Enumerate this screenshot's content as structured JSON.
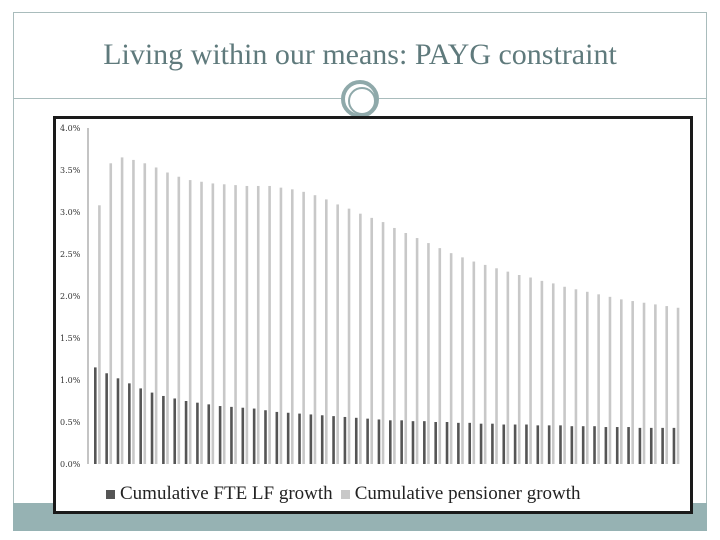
{
  "slide": {
    "title": "Living within our means: PAYG constraint"
  },
  "colors": {
    "frame": "#a9bcbc",
    "band": "#96b2b3",
    "title": "#5f7a7c",
    "series_fte": "#555555",
    "series_pensioner": "#c8c8c8"
  },
  "chart_data": {
    "type": "bar",
    "title": "",
    "xlabel": "",
    "ylabel": "",
    "ylim": [
      0,
      4.0
    ],
    "y_ticks": [
      "0.0%",
      "0.5%",
      "1.0%",
      "1.5%",
      "2.0%",
      "2.5%",
      "3.0%",
      "3.5%",
      "4.0%"
    ],
    "y_tick_values": [
      0,
      0.5,
      1.0,
      1.5,
      2.0,
      2.5,
      3.0,
      3.5,
      4.0
    ],
    "grid": false,
    "legend": "bottom",
    "series": [
      {
        "name": "Cumulative FTE LF growth",
        "values": [
          1.15,
          1.08,
          1.02,
          0.96,
          0.9,
          0.85,
          0.81,
          0.78,
          0.75,
          0.73,
          0.71,
          0.69,
          0.68,
          0.67,
          0.66,
          0.64,
          0.62,
          0.61,
          0.6,
          0.59,
          0.58,
          0.57,
          0.56,
          0.55,
          0.54,
          0.53,
          0.52,
          0.52,
          0.51,
          0.51,
          0.5,
          0.5,
          0.49,
          0.49,
          0.48,
          0.48,
          0.47,
          0.47,
          0.47,
          0.46,
          0.46,
          0.46,
          0.45,
          0.45,
          0.45,
          0.44,
          0.44,
          0.44,
          0.43,
          0.43,
          0.43,
          0.43
        ]
      },
      {
        "name": "Cumulative pensioner growth",
        "values": [
          3.08,
          3.58,
          3.65,
          3.62,
          3.58,
          3.53,
          3.47,
          3.42,
          3.38,
          3.36,
          3.34,
          3.33,
          3.32,
          3.31,
          3.31,
          3.31,
          3.29,
          3.27,
          3.24,
          3.2,
          3.15,
          3.09,
          3.04,
          2.98,
          2.93,
          2.88,
          2.81,
          2.75,
          2.69,
          2.63,
          2.57,
          2.51,
          2.46,
          2.41,
          2.37,
          2.33,
          2.29,
          2.25,
          2.22,
          2.18,
          2.15,
          2.11,
          2.08,
          2.05,
          2.02,
          1.99,
          1.96,
          1.94,
          1.92,
          1.9,
          1.88,
          1.86
        ]
      }
    ]
  }
}
